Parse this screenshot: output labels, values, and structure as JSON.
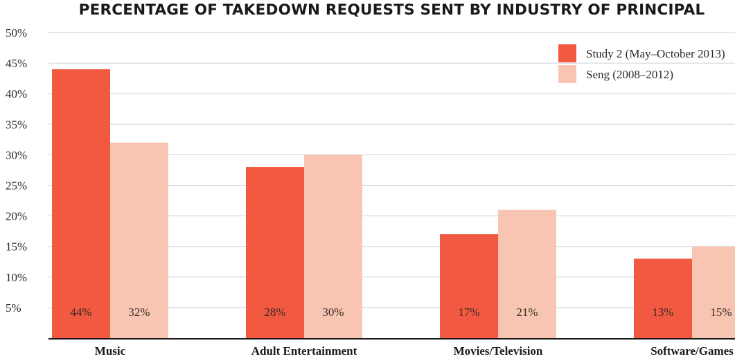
{
  "chart_data": {
    "type": "bar",
    "title": "PERCENTAGE OF TAKEDOWN REQUESTS SENT BY INDUSTRY OF PRINCIPAL",
    "categories": [
      "Music",
      "Adult Entertainment",
      "Movies/Television",
      "Software/Games"
    ],
    "series": [
      {
        "name": "Study 2 (May–October 2013)",
        "values": [
          44,
          28,
          17,
          13
        ],
        "labels": [
          "44%",
          "28%",
          "17%",
          "13%"
        ],
        "color": "#f15a40"
      },
      {
        "name": "Seng (2008–2012)",
        "values": [
          32,
          30,
          21,
          15
        ],
        "labels": [
          "32%",
          "30%",
          "21%",
          "15%"
        ],
        "color": "#f9c5b3"
      }
    ],
    "y_ticks": [
      {
        "value": 5,
        "label": "5%"
      },
      {
        "value": 10,
        "label": "10%"
      },
      {
        "value": 15,
        "label": "15%"
      },
      {
        "value": 20,
        "label": "20%"
      },
      {
        "value": 25,
        "label": "25%"
      },
      {
        "value": 30,
        "label": "30%"
      },
      {
        "value": 35,
        "label": "35%"
      },
      {
        "value": 40,
        "label": "40%"
      },
      {
        "value": 45,
        "label": "45%"
      },
      {
        "value": 50,
        "label": "50%"
      }
    ],
    "ylim": [
      0,
      50
    ],
    "grid": true,
    "legend_position": "top-right",
    "gridline_color": "#c9d3e0",
    "axis_color": "#1a1a1a"
  }
}
